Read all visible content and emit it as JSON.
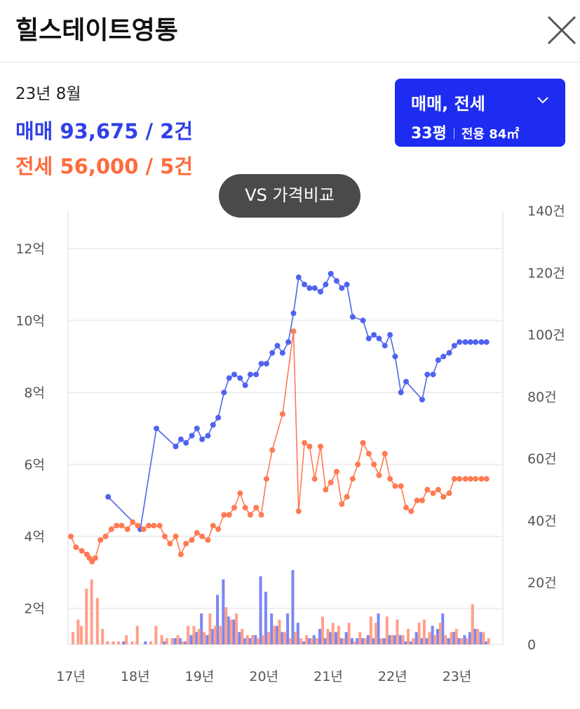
{
  "header": {
    "title": "힐스테이트영통"
  },
  "summary": {
    "period": "23년 8월",
    "sale": {
      "label": "매매",
      "value": "93,675 / 2건"
    },
    "rent": {
      "label": "전세",
      "value": "56,000 / 5건"
    }
  },
  "selector": {
    "trade_types": "매매, 전세",
    "size": "33평",
    "area": "전용 84㎡"
  },
  "vs_button": "VS 가격비교",
  "colors": {
    "sale": "#4f63f0",
    "rent": "#ff7a52",
    "sale_bar": "#7a88f2",
    "rent_bar": "#ffa08a",
    "accent_button": "#1d2cf0"
  },
  "chart_data": {
    "type": "line",
    "title": "",
    "xlabel": "",
    "ylabel": "",
    "x_tick_labels": [
      "17년",
      "18년",
      "19년",
      "20년",
      "21년",
      "22년",
      "23년"
    ],
    "x_range": [
      2017.0,
      2023.67
    ],
    "y_left": {
      "tick_labels": [
        "2억",
        "4억",
        "6억",
        "8억",
        "10억",
        "12억"
      ],
      "tick_values": [
        2,
        4,
        6,
        8,
        10,
        12
      ],
      "range": [
        1,
        13
      ],
      "unit": "억"
    },
    "y_right": {
      "tick_labels": [
        "0",
        "20건",
        "40건",
        "60건",
        "80건",
        "100건",
        "120건",
        "140건"
      ],
      "tick_values": [
        0,
        20,
        40,
        60,
        80,
        100,
        120,
        140
      ],
      "range": [
        0,
        140
      ],
      "unit": "건"
    },
    "grid": true,
    "series": [
      {
        "name": "매매",
        "kind": "line",
        "axis": "left",
        "x": [
          2017.58,
          2018.08,
          2018.33,
          2018.63,
          2018.71,
          2018.79,
          2018.88,
          2018.96,
          2019.04,
          2019.13,
          2019.21,
          2019.29,
          2019.38,
          2019.46,
          2019.54,
          2019.63,
          2019.71,
          2019.79,
          2019.88,
          2019.96,
          2020.04,
          2020.13,
          2020.21,
          2020.29,
          2020.38,
          2020.46,
          2020.54,
          2020.63,
          2020.71,
          2020.79,
          2020.88,
          2020.96,
          2021.04,
          2021.13,
          2021.21,
          2021.29,
          2021.38,
          2021.54,
          2021.63,
          2021.71,
          2021.79,
          2021.88,
          2021.96,
          2022.04,
          2022.13,
          2022.21,
          2022.46,
          2022.54,
          2022.63,
          2022.71,
          2022.79,
          2022.88,
          2022.96,
          2023.04,
          2023.13,
          2023.21,
          2023.29,
          2023.38,
          2023.46
        ],
        "y": [
          5.1,
          4.2,
          7.0,
          6.5,
          6.7,
          6.6,
          6.8,
          7.0,
          6.7,
          6.8,
          7.1,
          7.3,
          8.0,
          8.4,
          8.5,
          8.4,
          8.2,
          8.5,
          8.5,
          8.8,
          8.8,
          9.1,
          9.3,
          9.1,
          9.4,
          10.2,
          11.2,
          11.0,
          10.9,
          10.9,
          10.8,
          11.0,
          11.3,
          11.1,
          10.9,
          11.0,
          10.1,
          10.0,
          9.5,
          9.6,
          9.5,
          9.3,
          9.6,
          9.0,
          8.0,
          8.3,
          7.8,
          8.5,
          8.5,
          8.9,
          9.0,
          9.1,
          9.3,
          9.4,
          9.4,
          9.4,
          9.4,
          9.4,
          9.4
        ]
      },
      {
        "name": "전세",
        "kind": "line",
        "axis": "left",
        "x": [
          2017.0,
          2017.08,
          2017.17,
          2017.25,
          2017.29,
          2017.33,
          2017.38,
          2017.46,
          2017.54,
          2017.63,
          2017.71,
          2017.79,
          2017.88,
          2017.96,
          2018.04,
          2018.13,
          2018.21,
          2018.29,
          2018.38,
          2018.46,
          2018.54,
          2018.63,
          2018.71,
          2018.79,
          2018.88,
          2018.96,
          2019.04,
          2019.13,
          2019.21,
          2019.29,
          2019.38,
          2019.46,
          2019.54,
          2019.63,
          2019.71,
          2019.79,
          2019.88,
          2019.96,
          2020.04,
          2020.13,
          2020.29,
          2020.46,
          2020.54,
          2020.63,
          2020.71,
          2020.79,
          2020.88,
          2020.96,
          2021.04,
          2021.13,
          2021.21,
          2021.29,
          2021.38,
          2021.46,
          2021.54,
          2021.63,
          2021.71,
          2021.79,
          2021.88,
          2021.96,
          2022.04,
          2022.13,
          2022.21,
          2022.29,
          2022.38,
          2022.46,
          2022.54,
          2022.63,
          2022.71,
          2022.79,
          2022.88,
          2022.96,
          2023.04,
          2023.13,
          2023.21,
          2023.29,
          2023.38,
          2023.46
        ],
        "y": [
          4.0,
          3.7,
          3.6,
          3.5,
          3.4,
          3.3,
          3.4,
          3.9,
          4.0,
          4.2,
          4.3,
          4.3,
          4.2,
          4.4,
          4.3,
          4.2,
          4.3,
          4.3,
          4.3,
          4.0,
          3.8,
          4.0,
          3.5,
          3.8,
          3.9,
          4.1,
          4.0,
          3.9,
          4.3,
          4.2,
          4.6,
          4.6,
          4.8,
          5.2,
          4.8,
          4.6,
          4.8,
          4.6,
          5.6,
          6.4,
          7.4,
          9.7,
          4.7,
          6.6,
          6.5,
          5.6,
          6.5,
          5.3,
          5.5,
          5.8,
          4.9,
          5.1,
          5.6,
          6.0,
          6.6,
          6.3,
          6.0,
          5.7,
          6.3,
          5.6,
          5.4,
          5.4,
          4.8,
          4.7,
          5.0,
          5.0,
          5.3,
          5.2,
          5.3,
          5.1,
          5.2,
          5.6,
          5.6,
          5.6,
          5.6,
          5.6,
          5.6,
          5.6
        ]
      },
      {
        "name": "매매 거래량",
        "kind": "bar",
        "axis": "right",
        "x": [
          2017.58,
          2017.67,
          2017.83,
          2018.04,
          2018.17,
          2018.46,
          2018.63,
          2018.71,
          2018.79,
          2018.88,
          2018.96,
          2019.04,
          2019.13,
          2019.21,
          2019.29,
          2019.38,
          2019.46,
          2019.54,
          2019.63,
          2019.71,
          2019.79,
          2019.88,
          2019.96,
          2020.04,
          2020.13,
          2020.21,
          2020.29,
          2020.38,
          2020.46,
          2020.54,
          2020.63,
          2020.71,
          2020.79,
          2020.88,
          2020.96,
          2021.04,
          2021.13,
          2021.21,
          2021.29,
          2021.38,
          2021.46,
          2021.54,
          2021.63,
          2021.71,
          2021.79,
          2021.88,
          2021.96,
          2022.04,
          2022.13,
          2022.21,
          2022.29,
          2022.38,
          2022.46,
          2022.54,
          2022.63,
          2022.71,
          2022.79,
          2022.88,
          2022.96,
          2023.04,
          2023.13,
          2023.21,
          2023.29,
          2023.38,
          2023.46
        ],
        "y": [
          1,
          1,
          1,
          1,
          1,
          1,
          2,
          2,
          1,
          3,
          4,
          10,
          3,
          5,
          16,
          21,
          9,
          8,
          4,
          2,
          2,
          3,
          22,
          17,
          10,
          6,
          4,
          10,
          24,
          7,
          1,
          2,
          3,
          5,
          2,
          4,
          4,
          2,
          4,
          2,
          2,
          2,
          3,
          2,
          10,
          2,
          3,
          3,
          3,
          1,
          1,
          4,
          2,
          2,
          6,
          5,
          10,
          2,
          4,
          2,
          3,
          4,
          5,
          4,
          1
        ]
      },
      {
        "name": "전세 거래량",
        "kind": "bar",
        "axis": "right",
        "x": [
          2017.0,
          2017.08,
          2017.13,
          2017.21,
          2017.29,
          2017.38,
          2017.46,
          2017.54,
          2017.63,
          2017.71,
          2017.83,
          2017.92,
          2018.0,
          2018.21,
          2018.29,
          2018.38,
          2018.46,
          2018.54,
          2018.63,
          2018.71,
          2018.79,
          2018.88,
          2018.96,
          2019.04,
          2019.13,
          2019.21,
          2019.29,
          2019.38,
          2019.46,
          2019.54,
          2019.63,
          2019.71,
          2019.79,
          2019.88,
          2019.96,
          2020.04,
          2020.13,
          2020.21,
          2020.29,
          2020.38,
          2020.46,
          2020.54,
          2020.63,
          2020.71,
          2020.79,
          2020.88,
          2020.96,
          2021.04,
          2021.13,
          2021.21,
          2021.29,
          2021.38,
          2021.46,
          2021.54,
          2021.63,
          2021.71,
          2021.79,
          2021.88,
          2021.96,
          2022.04,
          2022.13,
          2022.21,
          2022.29,
          2022.38,
          2022.46,
          2022.54,
          2022.63,
          2022.71,
          2022.79,
          2022.88,
          2022.96,
          2023.04,
          2023.13,
          2023.21,
          2023.29,
          2023.38,
          2023.46
        ],
        "y": [
          4,
          8,
          6,
          18,
          21,
          15,
          5,
          1,
          1,
          1,
          3,
          1,
          6,
          1,
          6,
          3,
          2,
          2,
          3,
          1,
          6,
          6,
          5,
          4,
          10,
          6,
          6,
          12,
          8,
          10,
          5,
          3,
          3,
          2,
          3,
          4,
          6,
          8,
          4,
          2,
          4,
          2,
          3,
          2,
          2,
          9,
          5,
          7,
          6,
          2,
          7,
          1,
          4,
          2,
          9,
          7,
          2,
          9,
          3,
          8,
          3,
          5,
          2,
          7,
          8,
          4,
          3,
          7,
          3,
          4,
          5,
          2,
          2,
          13,
          5,
          4,
          2
        ]
      }
    ]
  }
}
